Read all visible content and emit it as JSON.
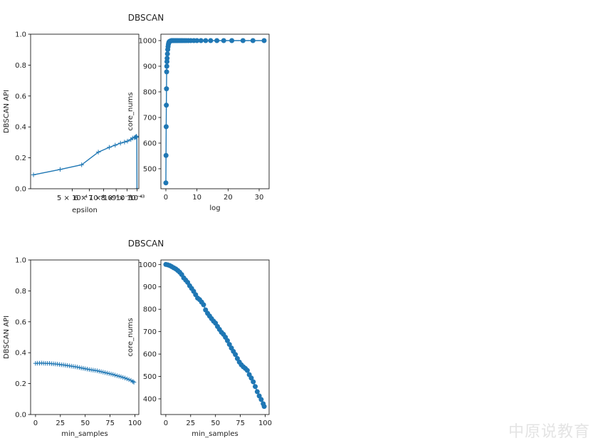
{
  "watermark": "中原说教育",
  "colors": {
    "line": "#1f77b4",
    "axis": "#000000"
  },
  "chart_data": [
    {
      "id": "p1",
      "type": "line",
      "title": "",
      "xlabel": "epsilon",
      "ylabel": "DBSCAN API",
      "xscale": "log",
      "xlim": [
        0.00032,
        0.00102
      ],
      "ylim": [
        0,
        1
      ],
      "yticks": [
        0,
        0.2,
        0.4,
        0.6,
        0.8,
        1.0
      ],
      "ytick_labels": [
        "0.0",
        "0.2",
        "0.4",
        "0.6",
        "0.8",
        "1.0"
      ],
      "xtick_values": [
        0.0005,
        0.0006,
        0.0007,
        0.0008,
        0.0009,
        0.001
      ],
      "xtick_labels": [
        "5 × 10⁻⁴",
        "6 × 10⁻⁴",
        "7 × 10⁻⁴",
        "8 × 10⁻⁴",
        "9 × 10⁻⁴",
        "10⁻³"
      ],
      "marker": "plus",
      "x": [
        0.00033,
        0.000439,
        0.000553,
        0.000661,
        0.000743,
        0.000792,
        0.000838,
        0.000875,
        0.000903,
        0.000936,
        0.000954,
        0.000973,
        0.000982,
        0.000989,
        0.000994,
        0.000998,
        0.001
      ],
      "y": [
        0.09,
        0.125,
        0.155,
        0.237,
        0.268,
        0.282,
        0.295,
        0.302,
        0.308,
        0.318,
        0.328,
        0.33,
        0.333,
        0.336,
        0.34,
        0.333,
        0.0
      ]
    },
    {
      "id": "p2",
      "type": "line",
      "title": "DBSCAN",
      "xlabel": "log",
      "ylabel": "core_nums",
      "xlim": [
        -1.6,
        33.2
      ],
      "ylim": [
        422,
        1025
      ],
      "xticks": [
        0,
        10,
        20,
        30
      ],
      "xtick_labels": [
        "0",
        "10",
        "20",
        "30"
      ],
      "yticks": [
        500,
        600,
        700,
        800,
        900,
        1000
      ],
      "ytick_labels": [
        "500",
        "600",
        "700",
        "800",
        "900",
        "1000"
      ],
      "marker": "circle",
      "x": [
        0.0,
        0.05,
        0.1,
        0.15,
        0.2,
        0.25,
        0.3,
        0.35,
        0.4,
        0.5,
        0.6,
        0.7,
        0.8,
        0.9,
        1.0,
        1.2,
        1.4,
        1.6,
        1.8,
        2.0,
        2.3,
        2.6,
        3.0,
        3.4,
        3.8,
        4.3,
        4.8,
        5.3,
        5.9,
        6.5,
        7.2,
        8.0,
        9.0,
        10.0,
        11.3,
        12.8,
        14.4,
        16.4,
        18.6,
        21.2,
        24.8,
        28.0,
        31.6
      ],
      "y": [
        445,
        552,
        664,
        748,
        812,
        878,
        900,
        918,
        931,
        948,
        965,
        976,
        985,
        990,
        994,
        997,
        998,
        999,
        1000,
        1000,
        1000,
        1000,
        1000,
        1000,
        1000,
        1000,
        1000,
        1000,
        1000,
        1000,
        1000,
        1000,
        1000,
        1000,
        1000,
        1000,
        1000,
        1000,
        1000,
        1000,
        1000,
        1000,
        1000
      ]
    },
    {
      "id": "p3",
      "type": "line",
      "title": "",
      "xlabel": "min_samples",
      "ylabel": "DBSCAN API",
      "xlim": [
        -4.95,
        103.95
      ],
      "ylim": [
        0,
        1
      ],
      "xticks": [
        0,
        25,
        50,
        75,
        100
      ],
      "xtick_labels": [
        "0",
        "25",
        "50",
        "75",
        "100"
      ],
      "yticks": [
        0,
        0.2,
        0.4,
        0.6,
        0.8,
        1.0
      ],
      "ytick_labels": [
        "0.0",
        "0.2",
        "0.4",
        "0.6",
        "0.8",
        "1.0"
      ],
      "marker": "plus",
      "x": [
        0,
        2,
        4,
        6,
        8,
        10,
        12,
        14,
        16,
        18,
        20,
        22,
        24,
        26,
        28,
        30,
        32,
        34,
        36,
        38,
        40,
        42,
        44,
        46,
        48,
        50,
        52,
        54,
        56,
        58,
        60,
        62,
        64,
        66,
        68,
        70,
        72,
        74,
        76,
        78,
        80,
        82,
        84,
        86,
        88,
        90,
        92,
        94,
        96,
        98,
        99
      ],
      "y": [
        0.331,
        0.332,
        0.332,
        0.333,
        0.332,
        0.331,
        0.331,
        0.331,
        0.329,
        0.328,
        0.327,
        0.326,
        0.324,
        0.322,
        0.321,
        0.319,
        0.317,
        0.315,
        0.313,
        0.311,
        0.309,
        0.307,
        0.304,
        0.301,
        0.299,
        0.296,
        0.294,
        0.291,
        0.289,
        0.287,
        0.285,
        0.283,
        0.28,
        0.277,
        0.274,
        0.271,
        0.268,
        0.265,
        0.262,
        0.259,
        0.255,
        0.251,
        0.248,
        0.244,
        0.24,
        0.236,
        0.231,
        0.226,
        0.221,
        0.213,
        0.209
      ]
    },
    {
      "id": "p4",
      "type": "line",
      "title": "DBSCAN",
      "xlabel": "min_samples",
      "ylabel": "core_nums",
      "xlim": [
        -4.95,
        103.95
      ],
      "ylim": [
        330,
        1020
      ],
      "xticks": [
        0,
        25,
        50,
        75,
        100
      ],
      "xtick_labels": [
        "0",
        "25",
        "50",
        "75",
        "100"
      ],
      "yticks": [
        400,
        500,
        600,
        700,
        800,
        900,
        1000
      ],
      "ytick_labels": [
        "400",
        "500",
        "600",
        "700",
        "800",
        "900",
        "1000"
      ],
      "marker": "circle",
      "x": [
        0,
        2,
        4,
        6,
        8,
        10,
        12,
        14,
        16,
        18,
        20,
        22,
        24,
        26,
        28,
        30,
        32,
        34,
        36,
        38,
        40,
        42,
        44,
        46,
        48,
        50,
        52,
        54,
        56,
        58,
        60,
        62,
        64,
        66,
        68,
        70,
        72,
        74,
        76,
        78,
        80,
        82,
        84,
        86,
        88,
        90,
        92,
        94,
        96,
        98,
        99
      ],
      "y": [
        1000,
        998,
        995,
        990,
        985,
        980,
        973,
        965,
        955,
        940,
        930,
        920,
        905,
        893,
        880,
        865,
        850,
        843,
        832,
        820,
        797,
        782,
        770,
        758,
        747,
        738,
        723,
        710,
        697,
        688,
        675,
        660,
        643,
        627,
        612,
        598,
        580,
        564,
        552,
        543,
        536,
        527,
        508,
        493,
        476,
        455,
        432,
        413,
        397,
        378,
        366
      ]
    }
  ]
}
